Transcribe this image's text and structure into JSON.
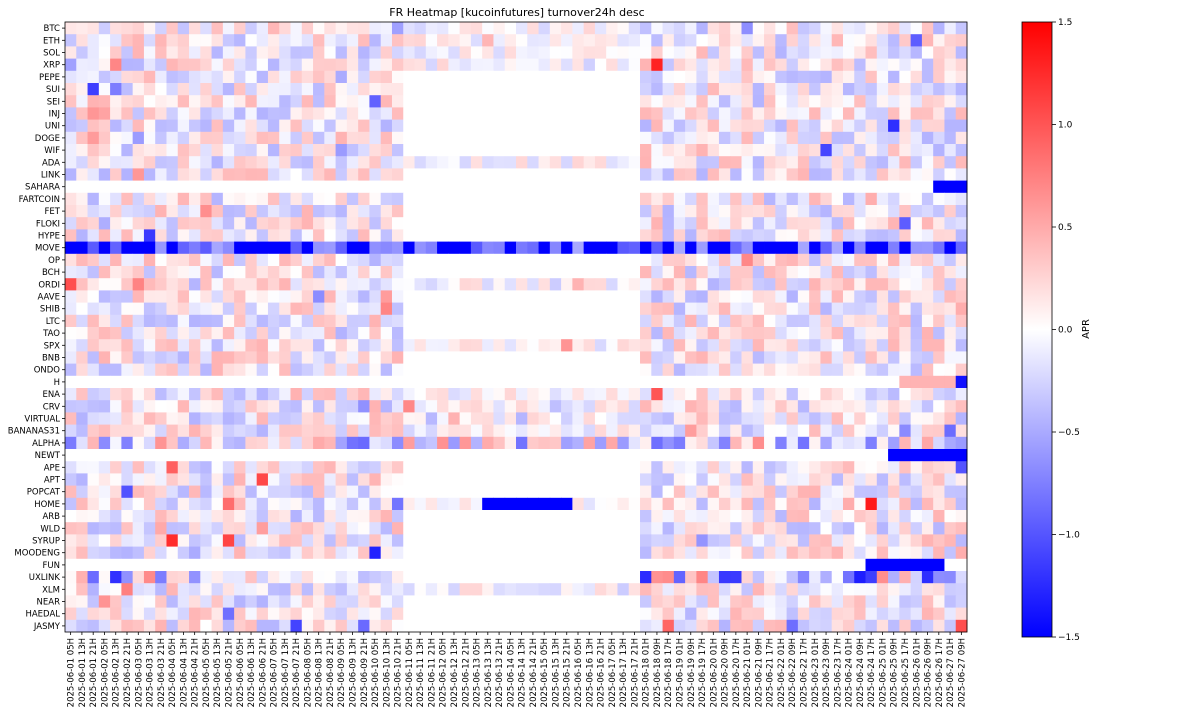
{
  "chart_data": {
    "type": "heatmap",
    "title": "FR Heatmap [kucoinfutures] turnover24h desc",
    "xlabel": "",
    "ylabel": "",
    "colorbar": {
      "label": "APR",
      "range": [
        -1.5,
        1.5
      ],
      "ticks": [
        -1.5,
        -1.0,
        -0.5,
        0.0,
        0.5,
        1.0,
        1.5
      ],
      "tick_labels": [
        "−1.5",
        "−1.0",
        "−0.5",
        "0.0",
        "0.5",
        "1.0",
        "1.5"
      ],
      "colormap": "bwr",
      "colors": {
        "low": "#0000ff",
        "mid": "#ffffff",
        "high": "#ff0000"
      }
    },
    "rows": [
      "BTC",
      "ETH",
      "SOL",
      "XRP",
      "PEPE",
      "SUI",
      "SEI",
      "INJ",
      "UNI",
      "DOGE",
      "WIF",
      "ADA",
      "LINK",
      "SAHARA",
      "FARTCOIN",
      "FET",
      "FLOKI",
      "HYPE",
      "MOVE",
      "OP",
      "BCH",
      "ORDI",
      "AAVE",
      "SHIB",
      "LTC",
      "TAO",
      "SPX",
      "BNB",
      "ONDO",
      "H",
      "ENA",
      "CRV",
      "VIRTUAL",
      "BANANAS31",
      "ALPHA",
      "NEWT",
      "APE",
      "APT",
      "POPCAT",
      "HOME",
      "ARB",
      "WLD",
      "SYRUP",
      "MOODENG",
      "FUN",
      "UXLINK",
      "XLM",
      "NEAR",
      "HAEDAL",
      "JASMY"
    ],
    "x_tick_labels": [
      "2025-06-01 05H",
      "2025-06-01 13H",
      "2025-06-01 21H",
      "2025-06-02 05H",
      "2025-06-02 13H",
      "2025-06-02 21H",
      "2025-06-03 05H",
      "2025-06-03 13H",
      "2025-06-03 21H",
      "2025-06-04 05H",
      "2025-06-04 13H",
      "2025-06-04 21H",
      "2025-06-05 05H",
      "2025-06-05 13H",
      "2025-06-05 21H",
      "2025-06-06 05H",
      "2025-06-06 13H",
      "2025-06-06 21H",
      "2025-06-07 05H",
      "2025-06-07 13H",
      "2025-06-07 21H",
      "2025-06-08 05H",
      "2025-06-08 13H",
      "2025-06-08 21H",
      "2025-06-09 05H",
      "2025-06-09 13H",
      "2025-06-09 21H",
      "2025-06-10 05H",
      "2025-06-10 13H",
      "2025-06-10 21H",
      "2025-06-11 05H",
      "2025-06-11 13H",
      "2025-06-11 21H",
      "2025-06-12 05H",
      "2025-06-12 13H",
      "2025-06-12 21H",
      "2025-06-13 05H",
      "2025-06-13 13H",
      "2025-06-13 21H",
      "2025-06-14 05H",
      "2025-06-14 13H",
      "2025-06-14 21H",
      "2025-06-15 05H",
      "2025-06-15 13H",
      "2025-06-15 21H",
      "2025-06-16 05H",
      "2025-06-16 13H",
      "2025-06-16 21H",
      "2025-06-17 05H",
      "2025-06-17 13H",
      "2025-06-17 21H",
      "2025-06-18 01H",
      "2025-06-18 09H",
      "2025-06-18 17H",
      "2025-06-19 01H",
      "2025-06-19 09H",
      "2025-06-19 17H",
      "2025-06-20 01H",
      "2025-06-20 09H",
      "2025-06-20 17H",
      "2025-06-21 01H",
      "2025-06-21 09H",
      "2025-06-21 17H",
      "2025-06-22 01H",
      "2025-06-22 09H",
      "2025-06-22 17H",
      "2025-06-23 01H",
      "2025-06-23 09H",
      "2025-06-23 17H",
      "2025-06-24 01H",
      "2025-06-24 09H",
      "2025-06-24 17H",
      "2025-06-25 01H",
      "2025-06-25 09H",
      "2025-06-25 17H",
      "2025-06-26 01H",
      "2025-06-26 09H",
      "2025-06-26 17H",
      "2025-06-27 01H",
      "2025-06-27 09H"
    ],
    "grid": false,
    "legend": "colorbar-right"
  }
}
